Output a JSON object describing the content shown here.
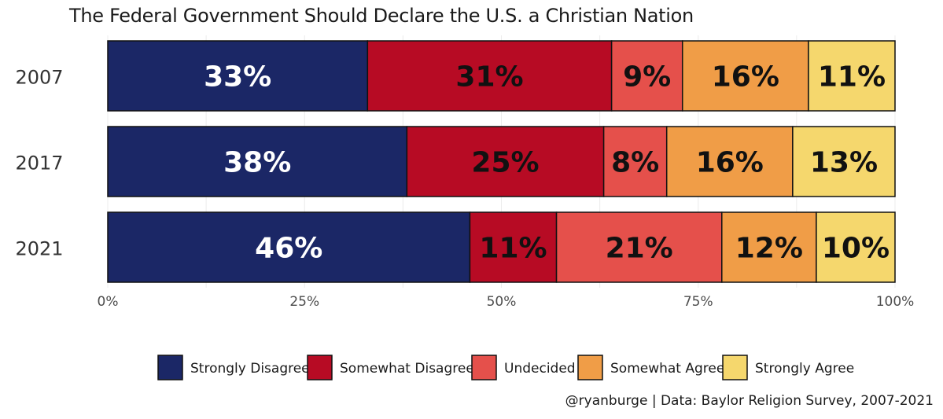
{
  "chart_data": {
    "type": "bar",
    "orientation": "horizontal-stacked-100",
    "title": "The Federal Government Should Declare the U.S. a Christian Nation",
    "caption": "@ryanburge | Data: Baylor Religion Survey, 2007-2021",
    "categories": [
      "2007",
      "2017",
      "2021"
    ],
    "series": [
      {
        "name": "Strongly Disagree",
        "values": [
          33,
          38,
          46
        ],
        "labels": [
          "33%",
          "38%",
          "46%"
        ],
        "color": "#1b2766"
      },
      {
        "name": "Somewhat Disagree",
        "values": [
          31,
          25,
          11
        ],
        "labels": [
          "31%",
          "25%",
          "11%"
        ],
        "color": "#b70b24"
      },
      {
        "name": "Undecided",
        "values": [
          9,
          8,
          21
        ],
        "labels": [
          "9%",
          "8%",
          "21%"
        ],
        "color": "#e5504b"
      },
      {
        "name": "Somewhat Agree",
        "values": [
          16,
          16,
          12
        ],
        "labels": [
          "16%",
          "16%",
          "12%"
        ],
        "color": "#f09d47"
      },
      {
        "name": "Strongly Agree",
        "values": [
          11,
          13,
          10
        ],
        "labels": [
          "11%",
          "13%",
          "10%"
        ],
        "color": "#f5d76d"
      }
    ],
    "x_ticks": [
      "0%",
      "25%",
      "50%",
      "75%",
      "100%"
    ],
    "xlim": [
      0,
      100
    ],
    "grid": true,
    "legend_position": "bottom",
    "label_color_dark_bg": "#ffffff",
    "label_color_light_bg": "#111111"
  }
}
